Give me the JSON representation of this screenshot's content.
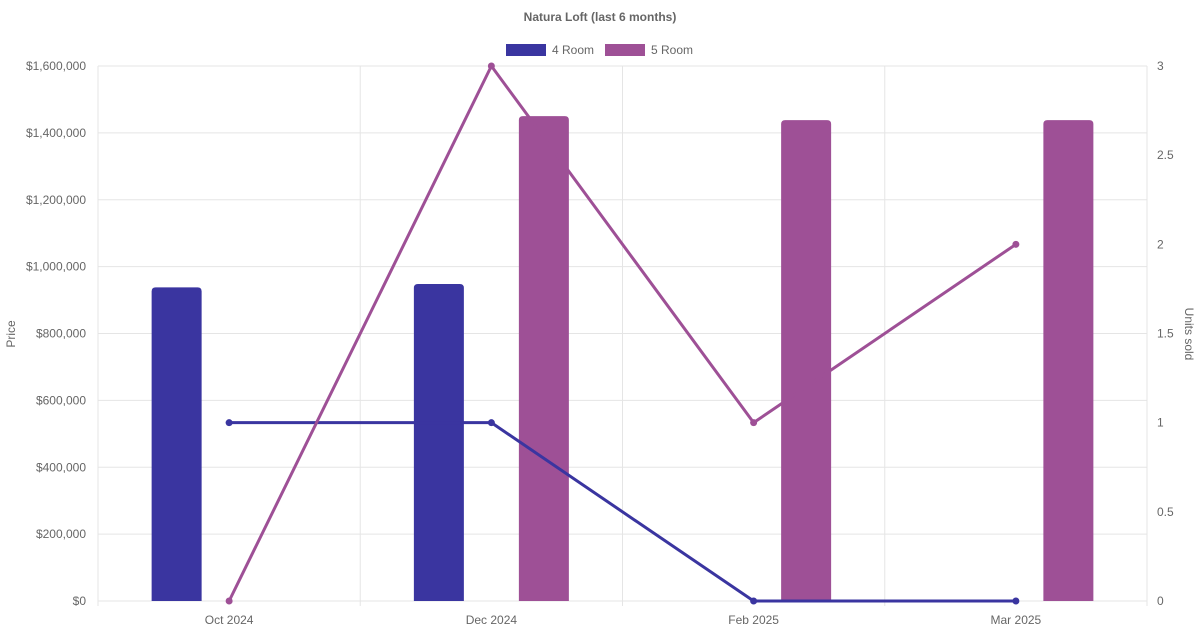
{
  "chart_data": {
    "type": "bar",
    "title": "Natura Loft (last 6 months)",
    "categories": [
      "Oct 2024",
      "Dec 2024",
      "Feb 2025",
      "Mar 2025"
    ],
    "ylabel": "Price",
    "y2label": "Units sold",
    "ylim": [
      0,
      1600000
    ],
    "y2lim": [
      0,
      3
    ],
    "yticks": [
      "$0",
      "$200,000",
      "$400,000",
      "$600,000",
      "$800,000",
      "$1,000,000",
      "$1,200,000",
      "$1,400,000",
      "$1,600,000"
    ],
    "y2ticks": [
      "0",
      "0.5",
      "1",
      "1.5",
      "2",
      "2.5",
      "3"
    ],
    "legend_position": "top-center",
    "grid": true,
    "series": [
      {
        "name": "4 Room",
        "color": "#3a35a0",
        "price": [
          938000,
          948000,
          null,
          null
        ],
        "units_sold": [
          1,
          1,
          0,
          0
        ]
      },
      {
        "name": "5 Room",
        "color": "#9e5096",
        "price": [
          null,
          1450000,
          1438000,
          1438000
        ],
        "units_sold": [
          0,
          3,
          1,
          2
        ]
      }
    ]
  }
}
